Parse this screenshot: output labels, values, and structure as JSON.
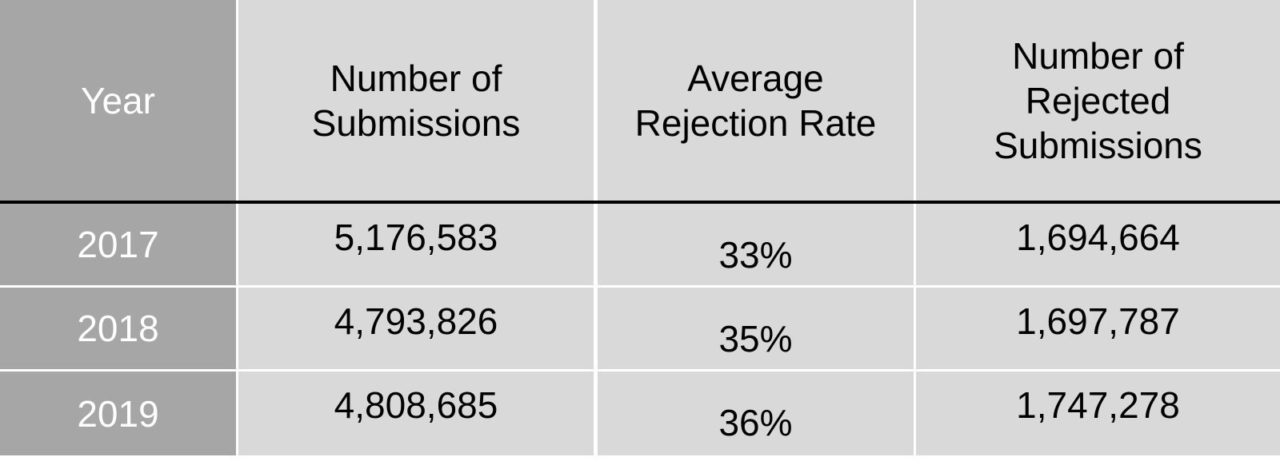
{
  "table": {
    "header": [
      "Year",
      "Number of Submissions",
      "Average Rejection Rate",
      "Number of Rejected Submissions"
    ],
    "rows": [
      [
        "2017",
        "5,176,583",
        "33%",
        "1,694,664"
      ],
      [
        "2018",
        "4,793,826",
        "35%",
        "1,697,787"
      ],
      [
        "2019",
        "4,808,685",
        "36%",
        "1,747,278"
      ]
    ]
  }
}
